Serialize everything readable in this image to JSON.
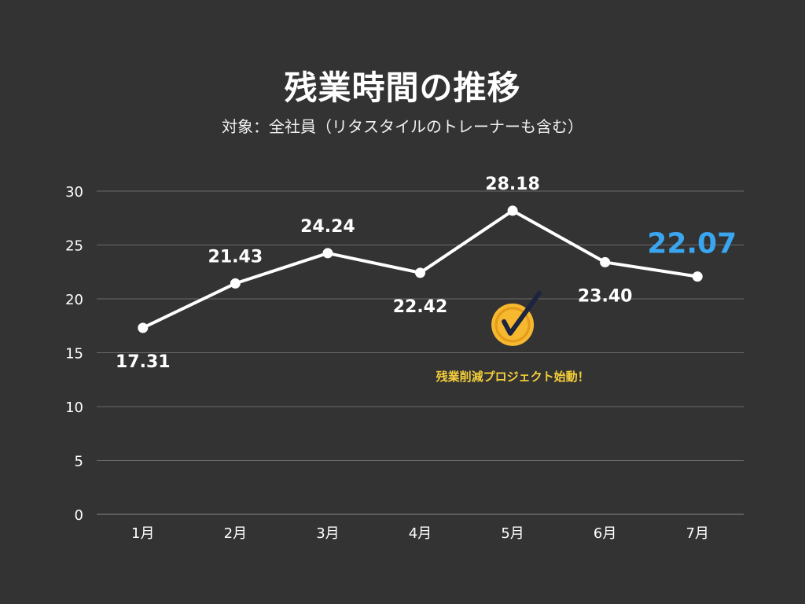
{
  "title": "残業時間の推移",
  "subtitle": "対象：全社員（リタスタイルのトレーナーも含む）",
  "annotation": {
    "text": "残業削減プロジェクト始動！",
    "category": "5月",
    "icon": "check-badge-icon"
  },
  "colors": {
    "background": "#333333",
    "line": "#ffffff",
    "grid": "#6a6a6a",
    "highlight": "#3aa6f0",
    "annotation": "#f5cf3a",
    "badge": "#f5b82e"
  },
  "chart_data": {
    "type": "line",
    "categories": [
      "1月",
      "2月",
      "3月",
      "4月",
      "5月",
      "6月",
      "7月"
    ],
    "series": [
      {
        "values": [
          17.31,
          21.43,
          24.24,
          22.42,
          28.18,
          23.4,
          22.07
        ]
      }
    ],
    "data_labels": [
      "17.31",
      "21.43",
      "24.24",
      "22.42",
      "28.18",
      "23.40",
      "22.07"
    ],
    "highlight_index": 6,
    "ylim": [
      0,
      30
    ],
    "yticks": [
      "0",
      "5",
      "10",
      "15",
      "20",
      "25",
      "30"
    ],
    "grid": true,
    "legend": "none",
    "xlabel": "",
    "ylabel": ""
  }
}
